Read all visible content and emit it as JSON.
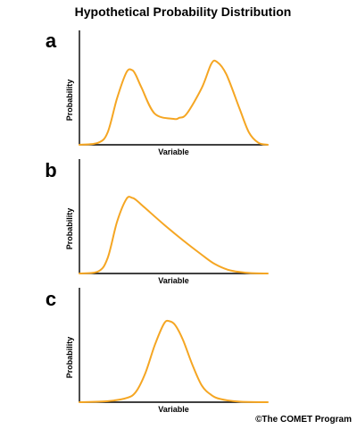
{
  "figure": {
    "title": "Hypothetical Probability Distribution",
    "credit": "©The COMET Program"
  },
  "colors": {
    "curve": "#f5a623",
    "axis": "#000000"
  },
  "chart_data": [
    {
      "type": "line",
      "panel_label": "a",
      "xlabel": "Variable",
      "ylabel": "Probability",
      "xlim": [
        0,
        1
      ],
      "ylim": [
        0,
        1
      ],
      "series": [
        {
          "x": [
            0,
            0.1,
            0.15,
            0.2,
            0.25,
            0.28,
            0.3,
            0.33,
            0.4,
            0.5,
            0.53,
            0.57,
            0.65,
            0.7,
            0.73,
            0.78,
            0.85,
            0.9,
            0.95,
            1.0
          ],
          "values": [
            0,
            0.02,
            0.12,
            0.45,
            0.7,
            0.72,
            0.67,
            0.55,
            0.3,
            0.25,
            0.26,
            0.3,
            0.55,
            0.78,
            0.8,
            0.68,
            0.35,
            0.12,
            0.02,
            0
          ]
        }
      ]
    },
    {
      "type": "line",
      "panel_label": "b",
      "xlabel": "Variable",
      "ylabel": "Probability",
      "xlim": [
        0,
        1
      ],
      "ylim": [
        0,
        1
      ],
      "series": [
        {
          "x": [
            0,
            0.1,
            0.15,
            0.2,
            0.25,
            0.28,
            0.3,
            0.35,
            0.45,
            0.55,
            0.65,
            0.72,
            0.8,
            0.9,
            1.0
          ],
          "values": [
            0,
            0.02,
            0.15,
            0.5,
            0.72,
            0.73,
            0.71,
            0.63,
            0.47,
            0.32,
            0.18,
            0.09,
            0.03,
            0.005,
            0
          ]
        }
      ]
    },
    {
      "type": "line",
      "panel_label": "c",
      "xlabel": "Variable",
      "ylabel": "Probability",
      "xlim": [
        0,
        1
      ],
      "ylim": [
        0,
        1
      ],
      "series": [
        {
          "x": [
            0,
            0.15,
            0.25,
            0.3,
            0.35,
            0.4,
            0.45,
            0.48,
            0.51,
            0.55,
            0.6,
            0.65,
            0.7,
            0.75,
            0.85,
            1.0
          ],
          "values": [
            0,
            0.01,
            0.04,
            0.1,
            0.28,
            0.55,
            0.76,
            0.78,
            0.74,
            0.6,
            0.36,
            0.16,
            0.07,
            0.03,
            0.005,
            0
          ]
        }
      ]
    }
  ]
}
